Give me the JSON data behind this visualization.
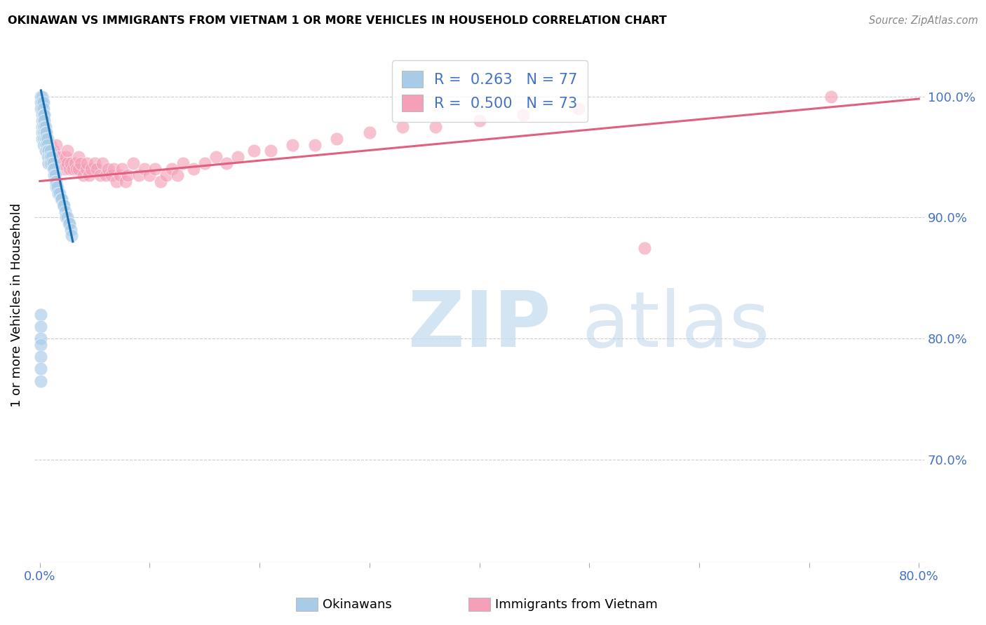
{
  "title": "OKINAWAN VS IMMIGRANTS FROM VIETNAM 1 OR MORE VEHICLES IN HOUSEHOLD CORRELATION CHART",
  "source": "Source: ZipAtlas.com",
  "ylabel": "1 or more Vehicles in Household",
  "ytick_labels": [
    "100.0%",
    "90.0%",
    "80.0%",
    "70.0%"
  ],
  "ytick_values": [
    1.0,
    0.9,
    0.8,
    0.7
  ],
  "xlim": [
    -0.005,
    0.805
  ],
  "ylim": [
    0.615,
    1.04
  ],
  "legend_r1": "R =  0.263",
  "legend_n1": "N = 77",
  "legend_r2": "R =  0.500",
  "legend_n2": "N = 73",
  "okinawan_color": "#a8cce8",
  "vietnam_color": "#f4a0b8",
  "okinawan_line_color": "#1a6faf",
  "vietnam_line_color": "#e06080",
  "legend_label1": "Okinawans",
  "legend_label2": "Immigrants from Vietnam",
  "okinawan_x": [
    0.001,
    0.001,
    0.001,
    0.002,
    0.002,
    0.002,
    0.002,
    0.002,
    0.002,
    0.002,
    0.002,
    0.003,
    0.003,
    0.003,
    0.003,
    0.003,
    0.003,
    0.003,
    0.003,
    0.004,
    0.004,
    0.004,
    0.004,
    0.004,
    0.004,
    0.005,
    0.005,
    0.005,
    0.005,
    0.005,
    0.006,
    0.006,
    0.006,
    0.006,
    0.007,
    0.007,
    0.007,
    0.007,
    0.008,
    0.008,
    0.008,
    0.009,
    0.009,
    0.01,
    0.01,
    0.01,
    0.011,
    0.011,
    0.012,
    0.012,
    0.013,
    0.013,
    0.014,
    0.014,
    0.015,
    0.015,
    0.016,
    0.017,
    0.018,
    0.019,
    0.02,
    0.021,
    0.022,
    0.023,
    0.024,
    0.025,
    0.026,
    0.027,
    0.028,
    0.029,
    0.001,
    0.001,
    0.001,
    0.001,
    0.001,
    0.001,
    0.001
  ],
  "okinawan_y": [
    1.0,
    0.995,
    0.99,
    1.0,
    0.995,
    0.99,
    0.985,
    0.98,
    0.975,
    0.97,
    0.965,
    0.995,
    0.99,
    0.985,
    0.98,
    0.975,
    0.97,
    0.965,
    0.96,
    0.985,
    0.98,
    0.975,
    0.97,
    0.965,
    0.96,
    0.975,
    0.97,
    0.965,
    0.96,
    0.955,
    0.97,
    0.965,
    0.96,
    0.955,
    0.965,
    0.96,
    0.955,
    0.95,
    0.955,
    0.95,
    0.945,
    0.95,
    0.945,
    0.955,
    0.95,
    0.945,
    0.95,
    0.945,
    0.945,
    0.94,
    0.94,
    0.935,
    0.935,
    0.93,
    0.93,
    0.925,
    0.925,
    0.92,
    0.92,
    0.915,
    0.915,
    0.91,
    0.91,
    0.905,
    0.9,
    0.9,
    0.895,
    0.895,
    0.89,
    0.885,
    0.82,
    0.81,
    0.8,
    0.795,
    0.785,
    0.775,
    0.765
  ],
  "vietnam_x": [
    0.003,
    0.005,
    0.006,
    0.007,
    0.008,
    0.008,
    0.01,
    0.01,
    0.012,
    0.013,
    0.015,
    0.015,
    0.017,
    0.018,
    0.02,
    0.022,
    0.024,
    0.025,
    0.025,
    0.027,
    0.028,
    0.03,
    0.032,
    0.033,
    0.035,
    0.035,
    0.037,
    0.04,
    0.042,
    0.043,
    0.045,
    0.047,
    0.05,
    0.052,
    0.055,
    0.057,
    0.06,
    0.062,
    0.065,
    0.067,
    0.07,
    0.073,
    0.075,
    0.078,
    0.08,
    0.085,
    0.09,
    0.095,
    0.1,
    0.105,
    0.11,
    0.115,
    0.12,
    0.125,
    0.13,
    0.14,
    0.15,
    0.16,
    0.17,
    0.18,
    0.195,
    0.21,
    0.23,
    0.25,
    0.27,
    0.3,
    0.33,
    0.36,
    0.4,
    0.44,
    0.49,
    0.55,
    0.72
  ],
  "vietnam_y": [
    0.965,
    0.955,
    0.96,
    0.955,
    0.95,
    0.945,
    0.96,
    0.95,
    0.955,
    0.945,
    0.96,
    0.95,
    0.945,
    0.95,
    0.945,
    0.94,
    0.95,
    0.955,
    0.945,
    0.94,
    0.945,
    0.94,
    0.945,
    0.94,
    0.95,
    0.94,
    0.945,
    0.935,
    0.94,
    0.945,
    0.935,
    0.94,
    0.945,
    0.94,
    0.935,
    0.945,
    0.935,
    0.94,
    0.935,
    0.94,
    0.93,
    0.935,
    0.94,
    0.93,
    0.935,
    0.945,
    0.935,
    0.94,
    0.935,
    0.94,
    0.93,
    0.935,
    0.94,
    0.935,
    0.945,
    0.94,
    0.945,
    0.95,
    0.945,
    0.95,
    0.955,
    0.955,
    0.96,
    0.96,
    0.965,
    0.97,
    0.975,
    0.975,
    0.98,
    0.985,
    0.99,
    0.875,
    1.0
  ],
  "vietnam_line_x0": 0.0,
  "vietnam_line_y0": 0.93,
  "vietnam_line_x1": 0.8,
  "vietnam_line_y1": 0.998,
  "ok_line_x0": 0.001,
  "ok_line_y0": 1.005,
  "ok_line_x1": 0.03,
  "ok_line_y1": 0.88
}
